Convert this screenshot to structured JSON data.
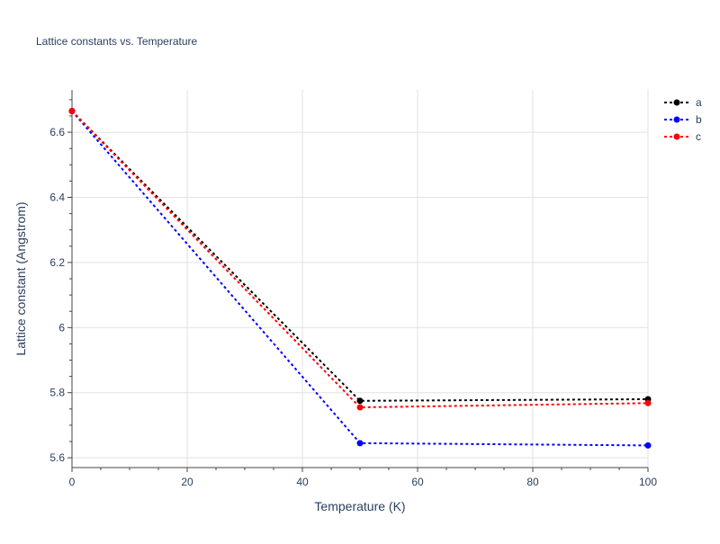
{
  "chart_data": {
    "type": "line",
    "title": "Lattice constants vs. Temperature",
    "xlabel": "Temperature (K)",
    "ylabel": "Lattice constant (Angstrom)",
    "xlim": [
      0,
      100
    ],
    "ylim": [
      5.57,
      6.73
    ],
    "x_ticks": [
      0,
      20,
      40,
      60,
      80,
      100
    ],
    "x_tick_labels": [
      "0",
      "20",
      "40",
      "60",
      "80",
      "100"
    ],
    "y_ticks": [
      5.6,
      5.8,
      6.0,
      6.2,
      6.4,
      6.6
    ],
    "y_tick_labels": [
      "5.6",
      "5.8",
      "6",
      "6.2",
      "6.4",
      "6.6"
    ],
    "grid": true,
    "legend_position": "top-right",
    "series": [
      {
        "name": "a",
        "color": "#000000",
        "x": [
          0,
          50,
          100
        ],
        "y": [
          6.665,
          5.775,
          5.78
        ]
      },
      {
        "name": "b",
        "color": "#0000ff",
        "x": [
          0,
          50,
          100
        ],
        "y": [
          6.665,
          5.645,
          5.638
        ]
      },
      {
        "name": "c",
        "color": "#ff0000",
        "x": [
          0,
          50,
          100
        ],
        "y": [
          6.665,
          5.755,
          5.768
        ]
      }
    ]
  }
}
